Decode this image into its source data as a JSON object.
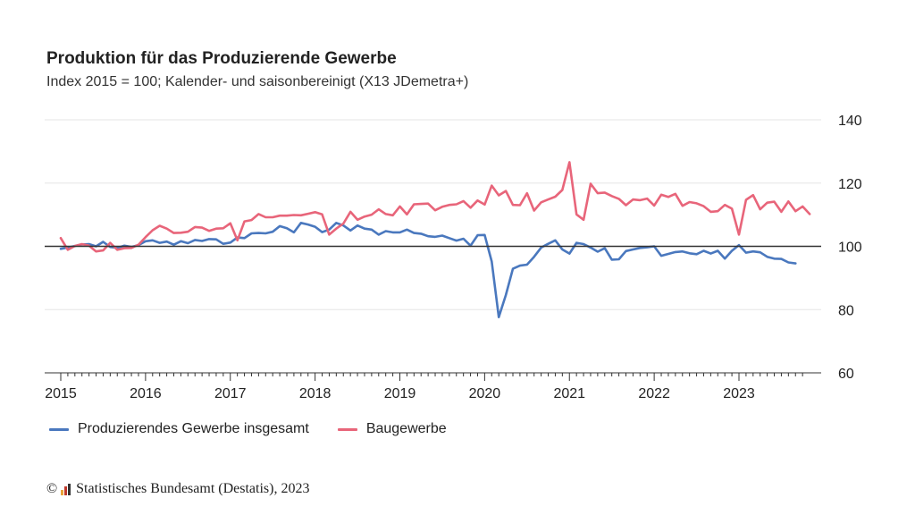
{
  "header": {
    "title": "Produktion für das Produzierende Gewerbe",
    "subtitle": "Index 2015 = 100; Kalender- und saisonbereinigt (X13 JDemetra+)"
  },
  "footer": {
    "copyright_symbol": "©",
    "text": "Statistisches Bundesamt (Destatis), 2023"
  },
  "colors": {
    "series_blue": "#4a78be",
    "series_red": "#e8657a",
    "gridline": "#e6e6e6",
    "baseline": "#333333",
    "axis": "#333333"
  },
  "chart_data": {
    "type": "line",
    "title": "Produktion für das Produzierende Gewerbe",
    "subtitle": "Index 2015 = 100; Kalender- und saisonbereinigt (X13 JDemetra+)",
    "x_start": "2015-01",
    "x_frequency": "monthly",
    "x_ticks": [
      "2015",
      "2016",
      "2017",
      "2018",
      "2019",
      "2020",
      "2021",
      "2022",
      "2023"
    ],
    "ylim": [
      60,
      140
    ],
    "y_ticks": [
      60,
      80,
      100,
      120,
      140
    ],
    "y_axis_position": "right",
    "reference_line": 100,
    "grid": "horizontal",
    "legend_position": "bottom-left",
    "series": [
      {
        "name": "Produzierendes Gewerbe insgesamt",
        "color": "#4a78be",
        "values": [
          99.2,
          99.6,
          100.1,
          100.6,
          100.7,
          100.0,
          101.4,
          99.8,
          99.5,
          100.2,
          99.8,
          100.4,
          101.6,
          101.9,
          101.1,
          101.5,
          100.5,
          101.6,
          101.0,
          102.0,
          101.7,
          102.3,
          102.2,
          100.8,
          101.2,
          102.8,
          102.6,
          104.1,
          104.2,
          104.1,
          104.6,
          106.4,
          105.7,
          104.4,
          107.4,
          106.9,
          106.2,
          104.5,
          105.3,
          107.4,
          106.6,
          105.0,
          106.6,
          105.6,
          105.3,
          103.7,
          104.8,
          104.4,
          104.4,
          105.3,
          104.2,
          104.0,
          103.2,
          103.0,
          103.4,
          102.6,
          101.8,
          102.4,
          100.2,
          103.5,
          103.6,
          95.2,
          77.6,
          84.6,
          92.9,
          93.9,
          94.2,
          96.7,
          99.6,
          100.8,
          101.9,
          99.0,
          97.7,
          101.1,
          100.7,
          99.6,
          98.3,
          99.4,
          95.8,
          95.9,
          98.5,
          99.0,
          99.5,
          99.7,
          100.0,
          97.0,
          97.6,
          98.2,
          98.4,
          97.8,
          97.5,
          98.6,
          97.7,
          98.6,
          96.1,
          98.6,
          100.4,
          98.0,
          98.4,
          98.1,
          96.7,
          96.1,
          96.0,
          94.9,
          94.6
        ]
      },
      {
        "name": "Baugewerbe",
        "color": "#e8657a",
        "values": [
          102.6,
          98.9,
          100.1,
          100.7,
          100.2,
          98.4,
          98.7,
          101.1,
          98.9,
          99.4,
          99.5,
          100.5,
          102.9,
          105.1,
          106.5,
          105.6,
          104.2,
          104.3,
          104.6,
          106.1,
          105.9,
          104.9,
          105.6,
          105.7,
          107.3,
          101.9,
          107.9,
          108.3,
          110.2,
          109.2,
          109.2,
          109.7,
          109.7,
          109.9,
          109.8,
          110.3,
          110.8,
          110.1,
          103.7,
          105.6,
          107.2,
          110.9,
          108.4,
          109.4,
          110.0,
          111.7,
          110.2,
          109.8,
          112.6,
          110.1,
          113.3,
          113.4,
          113.5,
          111.4,
          112.5,
          113.1,
          113.3,
          114.3,
          112.2,
          114.5,
          113.2,
          119.2,
          116.1,
          117.5,
          113.1,
          113.0,
          116.8,
          111.3,
          113.9,
          114.8,
          115.7,
          117.8,
          126.6,
          110.1,
          108.4,
          119.8,
          116.8,
          117.0,
          115.9,
          115.0,
          113.0,
          114.8,
          114.6,
          115.1,
          112.9,
          116.3,
          115.6,
          116.6,
          112.8,
          114.0,
          113.6,
          112.7,
          110.9,
          111.1,
          113.1,
          111.9,
          103.7,
          114.7,
          116.2,
          111.7,
          113.8,
          114.1,
          110.9,
          114.2,
          111.1,
          112.6,
          110.2
        ]
      }
    ]
  }
}
